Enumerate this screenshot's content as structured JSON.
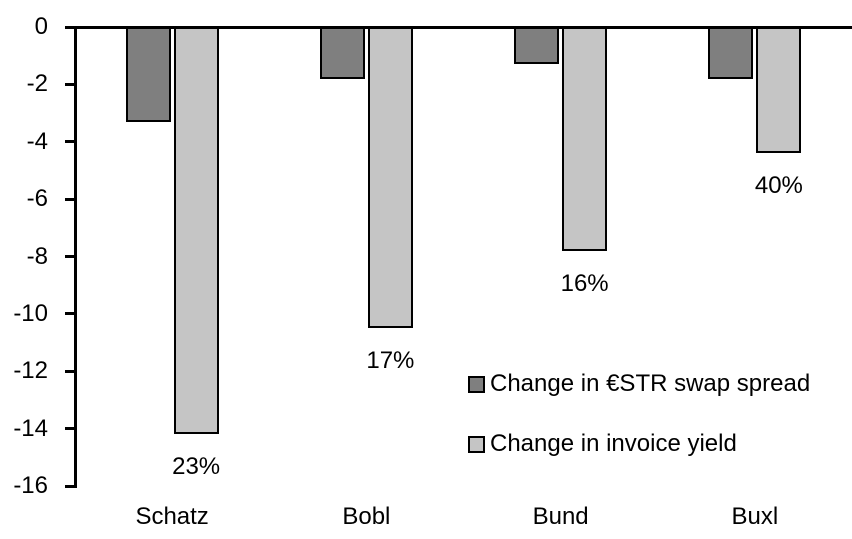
{
  "chart_data": {
    "type": "bar",
    "title": "",
    "xlabel": "",
    "ylabel": "",
    "categories": [
      "Schatz",
      "Bobl",
      "Bund",
      "Buxl"
    ],
    "series": [
      {
        "name": "Change in €STR swap spread",
        "color": "#7f7f7f",
        "values": [
          -3.3,
          -1.8,
          -1.3,
          -1.8
        ]
      },
      {
        "name": "Change in invoice yield",
        "color": "#c5c5c5",
        "values": [
          -14.2,
          -10.5,
          -7.8,
          -4.4
        ],
        "bar_labels": [
          "23%",
          "17%",
          "16%",
          "40%"
        ]
      }
    ],
    "ylim": [
      -16,
      0
    ],
    "yticks": [
      0,
      -2,
      -4,
      -6,
      -8,
      -10,
      -12,
      -14,
      -16
    ],
    "grid": false,
    "legend_position": "inside-right-lower",
    "axis_color": "#000000",
    "background": "#ffffff"
  }
}
